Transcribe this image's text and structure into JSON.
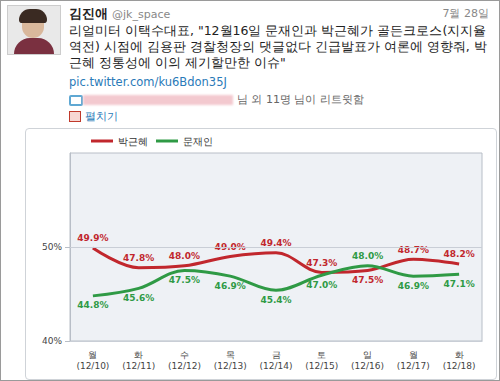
{
  "tweet": {
    "name": "김진애",
    "handle": "@jk_space",
    "date": "7월 28일",
    "text": "리얼미터 이택수대표, \"12월16일 문재인과 박근혜가 골든크로스(지지율 역전) 시점에 김용판 경찰청장의 댓글없다 긴급발표가 여론에 영향줘, 박근혜 정통성에 이의 제기할만한 이슈\"",
    "link": "pic.twitter.com/ku6Bdon35J",
    "retweets": "님 외 11명 님이 리트윗함",
    "expand": "펼치기"
  },
  "chart_data": {
    "type": "line",
    "categories": [
      "월\n(12/10)",
      "화\n(12/11)",
      "수\n(12/12)",
      "목\n(12/13)",
      "금\n(12/14)",
      "토\n(12/15)",
      "일\n(12/16)",
      "월\n(12/17)",
      "화\n(12/18)"
    ],
    "series": [
      {
        "name": "박근혜",
        "color": "#c1272d",
        "values": [
          49.9,
          47.8,
          48.0,
          49.0,
          49.4,
          47.3,
          47.5,
          48.7,
          48.2
        ],
        "value_labels": [
          "49.9%",
          "47.8%",
          "48.0%",
          "49.0%",
          "49.4%",
          "47.3%",
          "47.5%",
          "48.7%",
          "48.2%"
        ]
      },
      {
        "name": "문재인",
        "color": "#2f9a45",
        "values": [
          44.8,
          45.6,
          47.5,
          46.9,
          45.4,
          47.0,
          48.0,
          46.9,
          47.1
        ],
        "value_labels": [
          "44.8%",
          "45.6%",
          "47.5%",
          "46.9%",
          "45.4%",
          "47.0%",
          "48.0%",
          "46.9%",
          "47.1%"
        ]
      }
    ],
    "ylim": [
      40,
      60
    ],
    "yticks": [
      {
        "value": 40,
        "label": "40%"
      },
      {
        "value": 50,
        "label": "50%"
      }
    ],
    "grid": true,
    "legend": "top-left",
    "data_labels": true
  }
}
